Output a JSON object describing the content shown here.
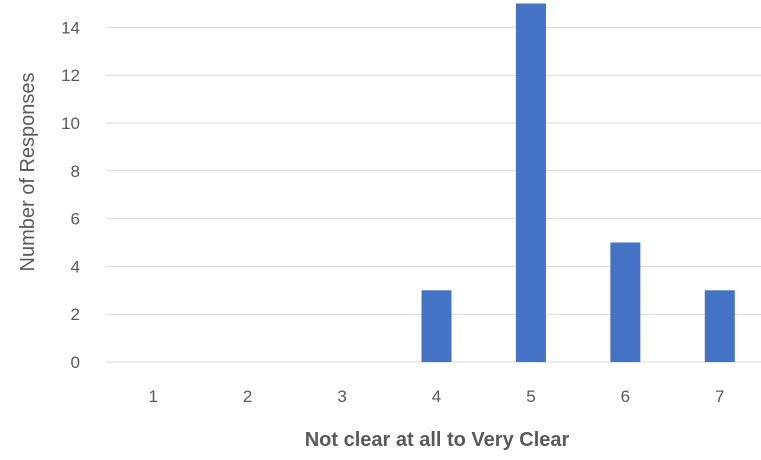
{
  "chart_data": {
    "type": "bar",
    "categories": [
      "1",
      "2",
      "3",
      "4",
      "5",
      "6",
      "7"
    ],
    "series": [
      {
        "values": [
          0,
          0,
          0,
          3,
          15,
          5,
          3
        ]
      }
    ],
    "title": "",
    "xlabel": "Not clear at all to Very Clear",
    "ylabel": "Number of Responses",
    "ylim": [
      0,
      15
    ],
    "yticks": [
      0,
      2,
      4,
      6,
      8,
      10,
      12,
      14
    ],
    "grid": true,
    "legend": "none",
    "bar_color": "#4472C4",
    "grid_color": "#D9D9D9",
    "text_color": "#595959"
  }
}
